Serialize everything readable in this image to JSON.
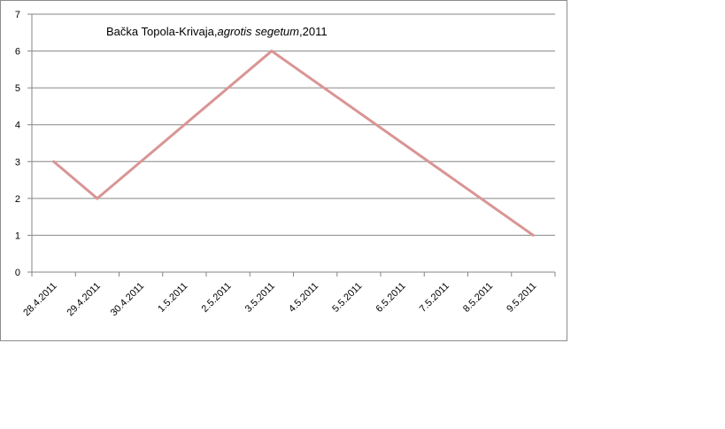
{
  "chart_data": {
    "type": "line",
    "title_parts": [
      {
        "text": "Bačka Topola-Krivaja,",
        "italic": false
      },
      {
        "text": "agrotis segetum",
        "italic": true
      },
      {
        "text": ",2011",
        "italic": false
      }
    ],
    "categories": [
      "28.4.2011",
      "29.4.2011",
      "30.4.2011",
      "1.5.2011",
      "2.5.2011",
      "3.5.2011",
      "4.5.2011",
      "5.5.2011",
      "6.5.2011",
      "7.5.2011",
      "8.5.2011",
      "9.5.2011"
    ],
    "x": [
      0,
      1,
      5,
      11
    ],
    "values": [
      3,
      2,
      6,
      1
    ],
    "ylim": [
      0,
      7
    ],
    "yticks": [
      0,
      1,
      2,
      3,
      4,
      5,
      6,
      7
    ],
    "grid": true,
    "legend": "none",
    "colors": {
      "line": "#d99594",
      "grid": "#868686",
      "axis": "#868686"
    }
  }
}
